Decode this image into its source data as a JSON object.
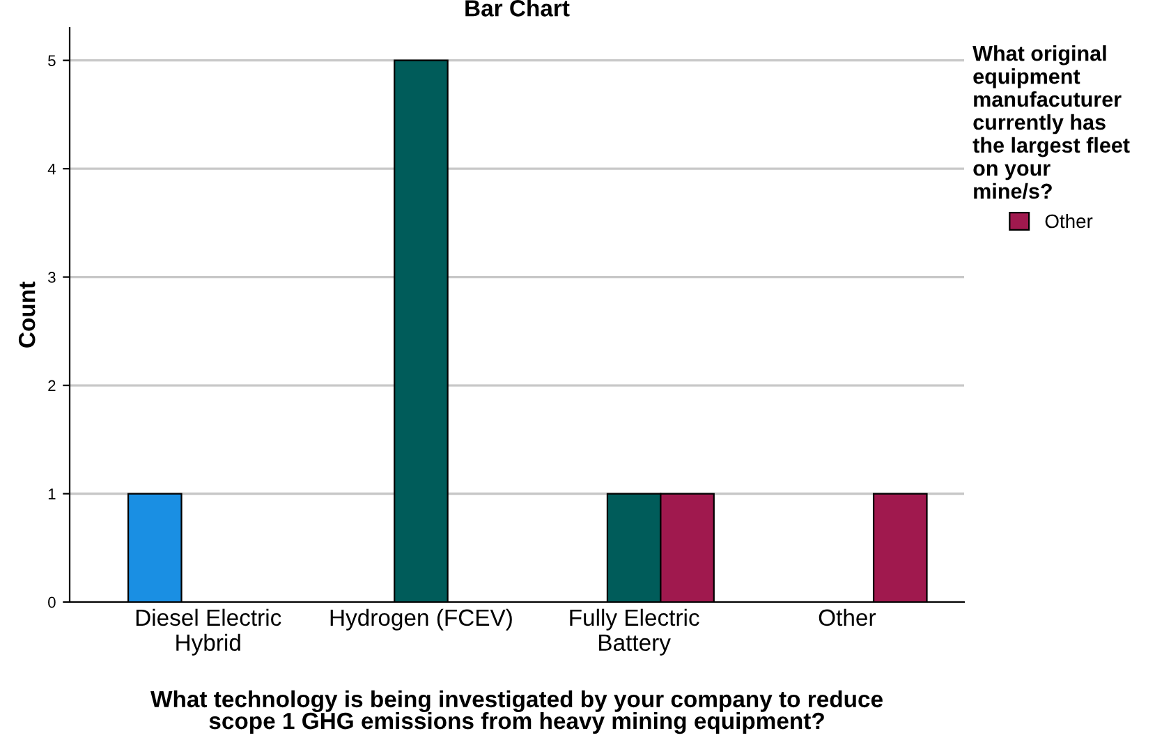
{
  "chart_data": {
    "type": "bar",
    "title": "Bar Chart",
    "xlabel": "What technology is being investigated by your company to reduce\nscope 1 GHG emissions from heavy mining equipment?",
    "ylabel": "Count",
    "legend_title": "What original\nequipment\nmanufacuturer\ncurrently has\nthe largest fleet\non your\nmine/s?",
    "categories": [
      "Diesel Electric\nHybrid",
      "Hydrogen (FCEV)",
      "Fully Electric\nBattery",
      "Other"
    ],
    "series": [
      {
        "color": "#1a8fe3",
        "values": [
          1,
          null,
          null,
          null
        ]
      },
      {
        "color": "#005c5a",
        "values": [
          null,
          5,
          1,
          null
        ]
      },
      {
        "name": "Other",
        "color": "#a0194e",
        "values": [
          null,
          null,
          1,
          1
        ]
      }
    ],
    "ylim": [
      0,
      5.3
    ],
    "yticks": [
      0,
      1,
      2,
      3,
      4,
      5
    ],
    "grid": "y",
    "legend": "right"
  }
}
